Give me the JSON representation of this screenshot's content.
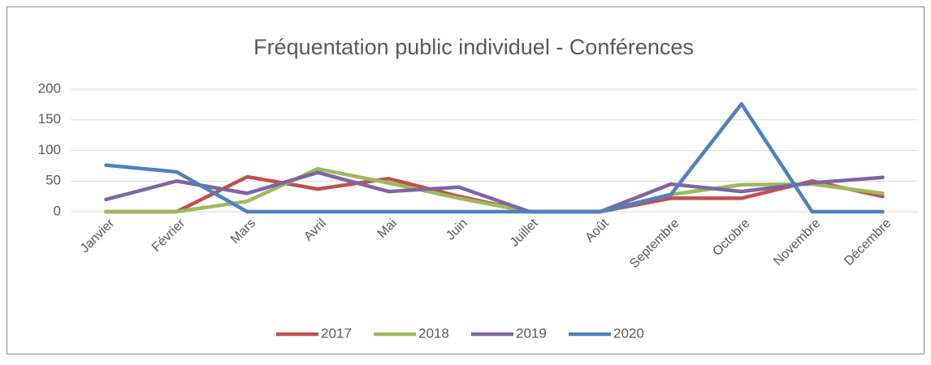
{
  "chart_data": {
    "type": "line",
    "title": "Fréquentation public individuel - Conférences",
    "categories": [
      "Janvier",
      "Février",
      "Mars",
      "Avril",
      "Mai",
      "Juin",
      "Juillet",
      "Août",
      "Septembre",
      "Octobre",
      "Novembre",
      "Décembre"
    ],
    "series": [
      {
        "name": "2017",
        "color": "#c0504d",
        "values": [
          0,
          0,
          57,
          37,
          54,
          25,
          0,
          0,
          22,
          22,
          50,
          25
        ]
      },
      {
        "name": "2018",
        "color": "#9bbb59",
        "values": [
          0,
          0,
          17,
          70,
          47,
          22,
          0,
          0,
          28,
          44,
          45,
          30
        ]
      },
      {
        "name": "2019",
        "color": "#8064a2",
        "values": [
          20,
          50,
          30,
          64,
          33,
          40,
          0,
          0,
          45,
          33,
          47,
          56
        ]
      },
      {
        "name": "2020",
        "color": "#4f81bd",
        "values": [
          76,
          65,
          0,
          0,
          0,
          0,
          0,
          0,
          28,
          176,
          0,
          0
        ]
      }
    ],
    "ylim": [
      0,
      200
    ],
    "yticks": [
      0,
      50,
      100,
      150,
      200
    ],
    "grid": true,
    "legend": "bottom"
  }
}
